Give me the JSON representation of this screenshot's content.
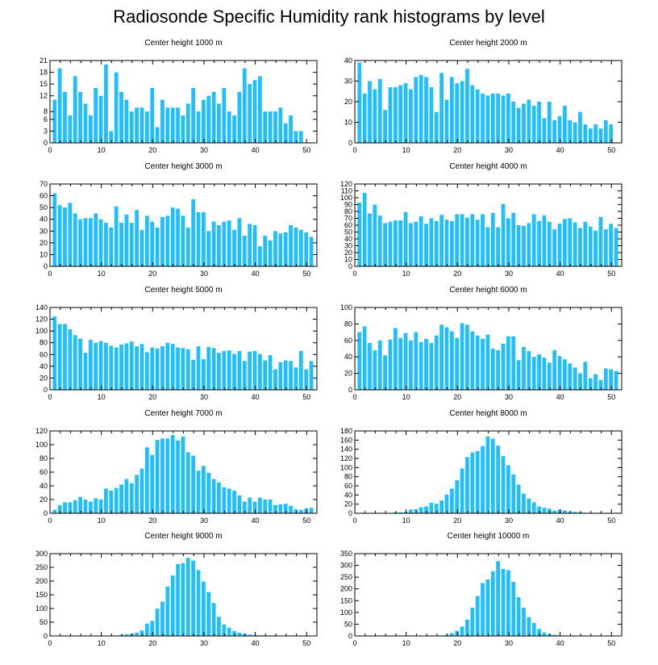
{
  "title": "Radiosonde Specific Humidity rank histograms by level",
  "colors": {
    "bar": "#1fbfff",
    "bar_edge": "#ffffff",
    "axis": "#000000"
  },
  "chart_data": [
    {
      "type": "bar",
      "title": "Center height 1000 m",
      "xlim": [
        0,
        52
      ],
      "ylim": [
        0,
        21
      ],
      "xticks": [
        0,
        10,
        20,
        30,
        40,
        50
      ],
      "yticks": [
        0,
        3,
        6,
        8,
        12,
        15,
        18,
        21
      ],
      "values": [
        11,
        19,
        13,
        7,
        17,
        13,
        10,
        7,
        14,
        12,
        20,
        3,
        18,
        13,
        11,
        8,
        9,
        9,
        8,
        14,
        4,
        11,
        9,
        9,
        9,
        7,
        10,
        14,
        8,
        11,
        12,
        13,
        10,
        14,
        8,
        7,
        13,
        19,
        15,
        16,
        17,
        8,
        8,
        8,
        9,
        5,
        7,
        3,
        3
      ]
    },
    {
      "type": "bar",
      "title": "Center height 2000 m",
      "xlim": [
        0,
        52
      ],
      "ylim": [
        0,
        40
      ],
      "xticks": [
        0,
        10,
        20,
        30,
        40,
        50
      ],
      "yticks": [
        0,
        10,
        20,
        30,
        40
      ],
      "values": [
        39,
        24,
        30,
        26,
        31,
        16,
        27,
        27,
        28,
        29,
        26,
        32,
        33,
        32,
        27,
        15,
        34,
        21,
        32,
        29,
        30,
        36,
        28,
        26,
        24,
        23,
        24,
        24,
        23,
        24,
        20,
        17,
        19,
        21,
        18,
        20,
        12,
        20,
        11,
        13,
        18,
        11,
        10,
        15,
        9,
        7,
        9,
        7,
        11,
        9
      ]
    },
    {
      "type": "bar",
      "title": "Center height 3000 m",
      "xlim": [
        0,
        52
      ],
      "ylim": [
        0,
        70
      ],
      "xticks": [
        0,
        10,
        20,
        30,
        40,
        50
      ],
      "yticks": [
        0,
        10,
        20,
        30,
        40,
        50,
        60,
        70
      ],
      "values": [
        62,
        52,
        50,
        54,
        45,
        40,
        41,
        41,
        45,
        40,
        37,
        33,
        51,
        37,
        44,
        37,
        48,
        31,
        43,
        38,
        33,
        42,
        43,
        50,
        49,
        43,
        33,
        57,
        46,
        46,
        30,
        38,
        35,
        38,
        39,
        31,
        41,
        26,
        36,
        35,
        17,
        26,
        22,
        30,
        28,
        29,
        35,
        33,
        31,
        29,
        25
      ]
    },
    {
      "type": "bar",
      "title": "Center height 4000 m",
      "xlim": [
        0,
        52
      ],
      "ylim": [
        0,
        120
      ],
      "xticks": [
        0,
        10,
        20,
        30,
        40,
        50
      ],
      "yticks": [
        0,
        10,
        20,
        30,
        40,
        50,
        60,
        70,
        80,
        90,
        100,
        110,
        120
      ],
      "values": [
        93,
        107,
        77,
        90,
        74,
        63,
        65,
        67,
        67,
        79,
        63,
        65,
        73,
        62,
        70,
        66,
        75,
        68,
        66,
        76,
        76,
        71,
        76,
        68,
        76,
        57,
        78,
        57,
        91,
        70,
        78,
        60,
        59,
        63,
        76,
        66,
        74,
        65,
        54,
        62,
        69,
        70,
        64,
        56,
        65,
        58,
        52,
        72,
        54,
        62,
        56
      ]
    },
    {
      "type": "bar",
      "title": "Center height 5000 m",
      "xlim": [
        0,
        52
      ],
      "ylim": [
        0,
        140
      ],
      "xticks": [
        0,
        10,
        20,
        30,
        40,
        50
      ],
      "yticks": [
        0,
        20,
        40,
        60,
        80,
        100,
        120,
        140
      ],
      "values": [
        125,
        112,
        112,
        103,
        93,
        87,
        63,
        85,
        80,
        83,
        80,
        75,
        72,
        77,
        79,
        82,
        74,
        78,
        64,
        72,
        70,
        74,
        80,
        78,
        72,
        71,
        69,
        51,
        74,
        52,
        73,
        71,
        63,
        66,
        67,
        61,
        66,
        49,
        65,
        66,
        61,
        50,
        59,
        35,
        47,
        50,
        49,
        38,
        66,
        35,
        49
      ]
    },
    {
      "type": "bar",
      "title": "Center height 6000 m",
      "xlim": [
        0,
        52
      ],
      "ylim": [
        0,
        100
      ],
      "xticks": [
        0,
        10,
        20,
        30,
        40,
        50
      ],
      "yticks": [
        0,
        20,
        40,
        60,
        80,
        100
      ],
      "values": [
        70,
        77,
        57,
        48,
        60,
        42,
        61,
        75,
        63,
        69,
        60,
        70,
        58,
        62,
        57,
        66,
        79,
        76,
        71,
        63,
        81,
        79,
        71,
        66,
        62,
        67,
        50,
        48,
        56,
        65,
        65,
        36,
        52,
        47,
        40,
        43,
        39,
        33,
        48,
        41,
        37,
        32,
        27,
        20,
        34,
        14,
        19,
        12,
        26,
        25,
        23
      ]
    },
    {
      "type": "bar",
      "title": "Center height 7000 m",
      "xlim": [
        0,
        52
      ],
      "ylim": [
        0,
        120
      ],
      "xticks": [
        0,
        10,
        20,
        30,
        40,
        50
      ],
      "yticks": [
        0,
        20,
        40,
        60,
        80,
        100,
        120
      ],
      "values": [
        5,
        12,
        16,
        16,
        19,
        24,
        20,
        17,
        22,
        20,
        36,
        33,
        37,
        42,
        50,
        44,
        56,
        65,
        96,
        85,
        107,
        109,
        109,
        114,
        106,
        112,
        89,
        84,
        62,
        69,
        59,
        50,
        45,
        38,
        36,
        33,
        26,
        17,
        23,
        17,
        23,
        20,
        20,
        12,
        13,
        14,
        11,
        6,
        5,
        7,
        8
      ]
    },
    {
      "type": "bar",
      "title": "Center height 8000 m",
      "xlim": [
        0,
        52
      ],
      "ylim": [
        0,
        180
      ],
      "xticks": [
        0,
        10,
        20,
        30,
        40,
        50
      ],
      "yticks": [
        0,
        20,
        40,
        60,
        80,
        100,
        120,
        140,
        160,
        180
      ],
      "values": [
        0,
        0,
        0,
        0,
        0,
        0,
        0,
        2,
        2,
        3,
        8,
        9,
        13,
        15,
        23,
        21,
        28,
        41,
        54,
        72,
        98,
        123,
        133,
        136,
        147,
        168,
        163,
        148,
        125,
        105,
        85,
        63,
        43,
        32,
        24,
        15,
        12,
        10,
        6,
        8,
        6,
        4,
        3,
        2,
        1,
        0,
        1,
        0,
        0,
        0,
        1
      ]
    },
    {
      "type": "bar",
      "title": "Center height 9000 m",
      "xlim": [
        0,
        52
      ],
      "ylim": [
        0,
        300
      ],
      "xticks": [
        0,
        10,
        20,
        30,
        40,
        50
      ],
      "yticks": [
        0,
        50,
        100,
        150,
        200,
        250,
        300
      ],
      "values": [
        0,
        0,
        0,
        0,
        0,
        0,
        0,
        0,
        0,
        0,
        0,
        0,
        0,
        3,
        6,
        8,
        12,
        20,
        45,
        55,
        100,
        125,
        180,
        220,
        262,
        265,
        285,
        275,
        240,
        198,
        160,
        120,
        70,
        42,
        30,
        18,
        12,
        8,
        5,
        4,
        2,
        2,
        1,
        2,
        1,
        1,
        0,
        0,
        1,
        0,
        1
      ]
    },
    {
      "type": "bar",
      "title": "Center height 10000 m",
      "xlim": [
        0,
        52
      ],
      "ylim": [
        0,
        350
      ],
      "xticks": [
        0,
        10,
        20,
        30,
        40,
        50
      ],
      "yticks": [
        0,
        50,
        100,
        150,
        200,
        250,
        300,
        350
      ],
      "values": [
        0,
        0,
        0,
        0,
        0,
        0,
        0,
        0,
        0,
        0,
        0,
        0,
        0,
        0,
        0,
        0,
        2,
        5,
        12,
        22,
        40,
        70,
        120,
        170,
        225,
        240,
        275,
        318,
        285,
        280,
        230,
        165,
        120,
        80,
        55,
        30,
        15,
        8,
        5,
        3,
        2,
        1,
        1,
        0,
        0,
        1,
        0,
        0,
        0,
        0,
        0
      ]
    }
  ]
}
